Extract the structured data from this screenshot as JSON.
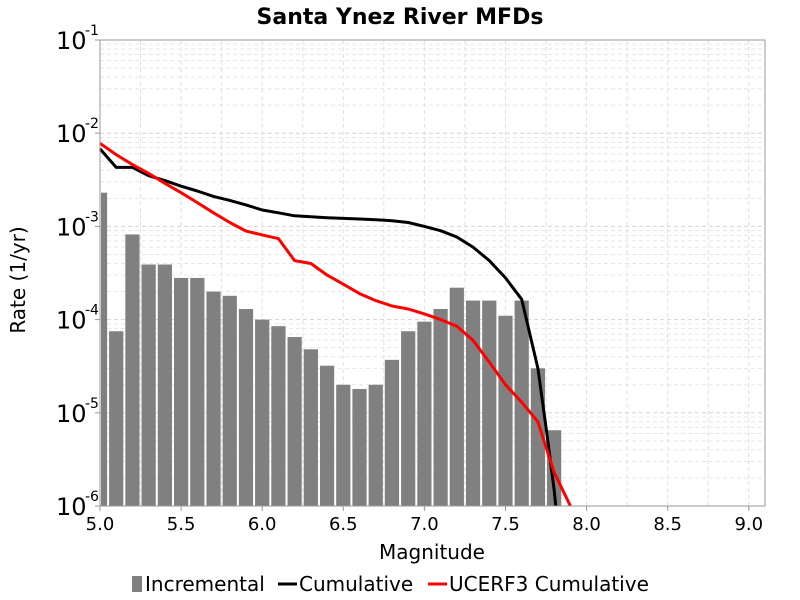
{
  "chart_data": {
    "type": "bar",
    "title": "Santa Ynez River MFDs",
    "xlabel": "Magnitude",
    "ylabel": "Rate (1/yr)",
    "xlim": [
      5.0,
      9.1
    ],
    "ylim": [
      1e-06,
      0.1
    ],
    "yscale": "log",
    "grid": true,
    "legend_position": "bottom",
    "x_ticks": [
      "5.0",
      "5.5",
      "6.0",
      "6.5",
      "7.0",
      "7.5",
      "8.0",
      "8.5",
      "9.0"
    ],
    "y_ticks": [
      {
        "base": "10",
        "exp": "-1"
      },
      {
        "base": "10",
        "exp": "-2"
      },
      {
        "base": "10",
        "exp": "-3"
      },
      {
        "base": "10",
        "exp": "-4"
      },
      {
        "base": "10",
        "exp": "-5"
      },
      {
        "base": "10",
        "exp": "-6"
      }
    ],
    "series": [
      {
        "name": "Incremental",
        "kind": "bar",
        "color": "#808080",
        "x": [
          5.0,
          5.1,
          5.2,
          5.3,
          5.4,
          5.5,
          5.6,
          5.7,
          5.8,
          5.9,
          6.0,
          6.1,
          6.2,
          6.3,
          6.4,
          6.5,
          6.6,
          6.7,
          6.8,
          6.9,
          7.0,
          7.1,
          7.2,
          7.3,
          7.4,
          7.5,
          7.6,
          7.7,
          7.8
        ],
        "values": [
          0.0023,
          7.5e-05,
          0.00082,
          0.00039,
          0.00039,
          0.00028,
          0.00028,
          0.0002,
          0.00018,
          0.00013,
          0.0001,
          8.5e-05,
          6.5e-05,
          4.8e-05,
          3.2e-05,
          2e-05,
          1.8e-05,
          2e-05,
          3.7e-05,
          7.5e-05,
          9.5e-05,
          0.00013,
          0.00022,
          0.00016,
          0.00016,
          0.00011,
          0.00016,
          3e-05,
          6.5e-06
        ]
      },
      {
        "name": "Cumulative",
        "kind": "line",
        "color": "#000000",
        "x": [
          5.0,
          5.1,
          5.2,
          5.3,
          5.4,
          5.5,
          5.6,
          5.7,
          5.8,
          5.9,
          6.0,
          6.1,
          6.2,
          6.3,
          6.4,
          6.5,
          6.6,
          6.7,
          6.8,
          6.9,
          7.0,
          7.1,
          7.2,
          7.3,
          7.4,
          7.5,
          7.6,
          7.7,
          7.75,
          7.8,
          7.81
        ],
        "values": [
          0.0068,
          0.0043,
          0.0043,
          0.0035,
          0.0031,
          0.0027,
          0.0024,
          0.0021,
          0.0019,
          0.0017,
          0.0015,
          0.0014,
          0.0013,
          0.00127,
          0.00124,
          0.00122,
          0.0012,
          0.00118,
          0.00115,
          0.0011,
          0.001,
          0.0009,
          0.00077,
          0.0006,
          0.00043,
          0.00028,
          0.000165,
          3e-05,
          7e-06,
          1.5e-06,
          1e-06
        ]
      },
      {
        "name": "UCERF3 Cumulative",
        "kind": "line",
        "color": "#ff0000",
        "x": [
          5.0,
          5.1,
          5.2,
          5.3,
          5.4,
          5.5,
          5.6,
          5.7,
          5.8,
          5.9,
          6.0,
          6.1,
          6.2,
          6.3,
          6.4,
          6.5,
          6.6,
          6.7,
          6.8,
          6.9,
          7.0,
          7.1,
          7.2,
          7.3,
          7.4,
          7.5,
          7.6,
          7.7,
          7.8,
          7.9,
          7.9
        ],
        "values": [
          0.0078,
          0.0059,
          0.0046,
          0.0037,
          0.0029,
          0.0023,
          0.0018,
          0.0014,
          0.0011,
          0.00089,
          0.00081,
          0.00074,
          0.00043,
          0.0004,
          0.0003,
          0.00024,
          0.00019,
          0.00016,
          0.00014,
          0.00013,
          0.000115,
          0.0001,
          8.5e-05,
          6e-05,
          3.5e-05,
          2e-05,
          1.3e-05,
          8e-06,
          2.3e-06,
          1e-06,
          1e-06
        ]
      }
    ]
  }
}
